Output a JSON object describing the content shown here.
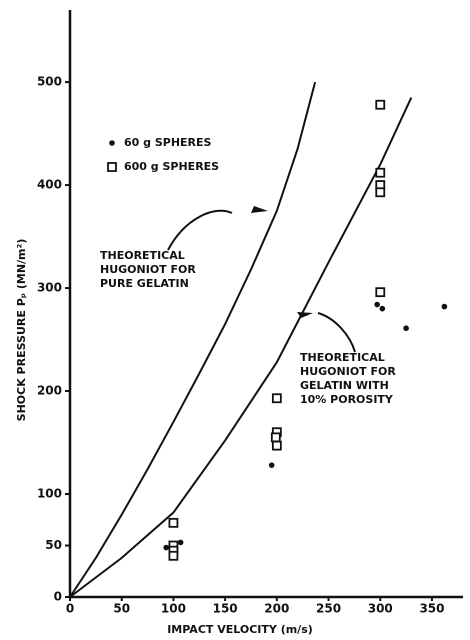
{
  "chart_data": {
    "type": "scatter",
    "xlabel": "IMPACT VELOCITY (m/s)",
    "ylabel": "SHOCK PRESSURE Pₚ (MN/m²)",
    "xlim": [
      0,
      380
    ],
    "ylim": [
      0,
      570
    ],
    "xticks": [
      0,
      50,
      100,
      150,
      200,
      250,
      300,
      350
    ],
    "yticks": [
      0,
      50,
      100,
      200,
      300,
      400,
      500
    ],
    "series": [
      {
        "name": "60 g SPHERES",
        "marker": "dot",
        "color": "#111111",
        "x": [
          93,
          107,
          195,
          297,
          302,
          325,
          362
        ],
        "values": [
          48,
          53,
          128,
          284,
          280,
          261,
          282
        ]
      },
      {
        "name": "600 g SPHERES",
        "marker": "square",
        "color": "#111111",
        "x": [
          100,
          100,
          100,
          100,
          200,
          200,
          199,
          200,
          300,
          300,
          300,
          300,
          300
        ],
        "values": [
          72,
          50,
          45,
          40,
          193,
          160,
          155,
          147,
          478,
          412,
          400,
          393,
          296
        ]
      }
    ],
    "curves": [
      {
        "annotation": [
          "THEORETICAL",
          "HUGONIOT FOR",
          "PURE GELATIN"
        ],
        "x": [
          0,
          25,
          50,
          75,
          100,
          125,
          150,
          175,
          200,
          220,
          237
        ],
        "values": [
          0,
          38,
          80,
          124,
          170,
          217,
          265,
          318,
          375,
          435,
          500
        ]
      },
      {
        "annotation": [
          "THEORETICAL",
          "HUGONIOT FOR",
          "GELATIN WITH",
          "10% POROSITY"
        ],
        "x": [
          0,
          50,
          100,
          150,
          200,
          250,
          300,
          330
        ],
        "values": [
          0,
          38,
          82,
          152,
          228,
          325,
          420,
          485
        ]
      }
    ]
  }
}
